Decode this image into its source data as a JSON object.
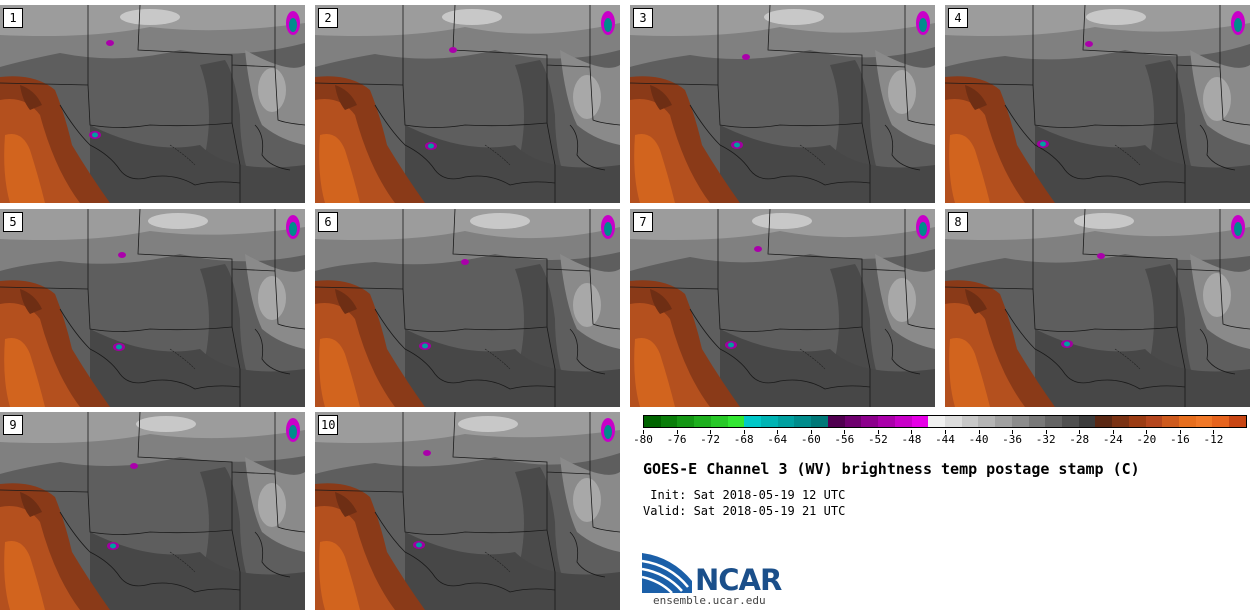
{
  "panels": [
    {
      "label": "1"
    },
    {
      "label": "2"
    },
    {
      "label": "3"
    },
    {
      "label": "4"
    },
    {
      "label": "5"
    },
    {
      "label": "6"
    },
    {
      "label": "7"
    },
    {
      "label": "8"
    },
    {
      "label": "9"
    },
    {
      "label": "10"
    }
  ],
  "colorbar": {
    "colors": [
      "#006400",
      "#0a7d0a",
      "#149614",
      "#1eaf1e",
      "#28c828",
      "#32e632",
      "#00c8c8",
      "#00b4b4",
      "#00a0a0",
      "#008c8c",
      "#007878",
      "#500050",
      "#6e006e",
      "#8c008c",
      "#aa00aa",
      "#c800c8",
      "#e600e6",
      "#f0f0f0",
      "#dcdcdc",
      "#c8c8c8",
      "#b4b4b4",
      "#a0a0a0",
      "#8c8c8c",
      "#787878",
      "#646464",
      "#505050",
      "#3c3c3c",
      "#5a2814",
      "#7a3214",
      "#9b3c14",
      "#b4461e",
      "#cd5a1e",
      "#e66e1e",
      "#f07828",
      "#e6641e",
      "#c84614"
    ],
    "tick_labels": [
      "-80",
      "-76",
      "-72",
      "-68",
      "-64",
      "-60",
      "-56",
      "-52",
      "-48",
      "-44",
      "-40",
      "-36",
      "-32",
      "-28",
      "-24",
      "-20",
      "-16",
      "-12"
    ]
  },
  "title": "GOES-E Channel 3 (WV) brightness temp postage stamp (C)",
  "init": " Init: Sat 2018-05-19 12 UTC",
  "valid": "Valid: Sat 2018-05-19 21 UTC",
  "logo": {
    "text": "NCAR",
    "color": "#1b4f8a"
  },
  "site": "ensemble.ucar.edu"
}
